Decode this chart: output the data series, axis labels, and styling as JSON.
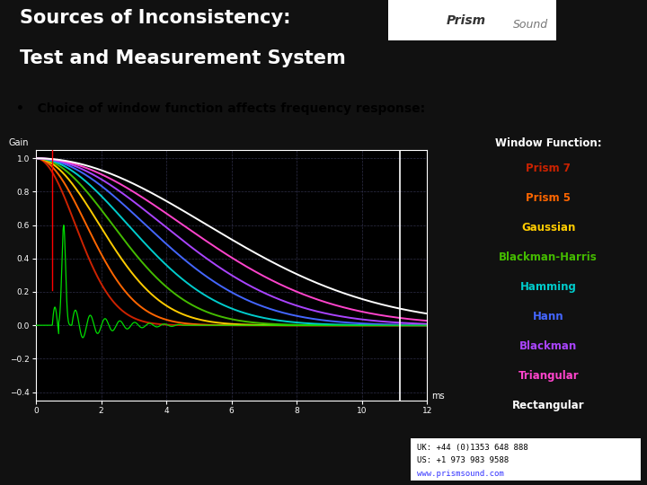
{
  "title_line1": "Sources of Inconsistency:",
  "title_line2": "Test and Measurement System",
  "title_bg": "#111111",
  "bullet_text": "Choice of window function affects frequency response:",
  "legend_title": "Window Function:",
  "window_functions": [
    "Prism 7",
    "Prism 5",
    "Gaussian",
    "Blackman-Harris",
    "Hamming",
    "Hann",
    "Blackman",
    "Triangular",
    "Rectangular"
  ],
  "window_colors": [
    "#cc2200",
    "#ff6600",
    "#ffcc00",
    "#44bb00",
    "#00cccc",
    "#4466ff",
    "#aa44ff",
    "#ff44cc",
    "#ffffff"
  ],
  "half_widths": [
    1.8,
    2.3,
    2.9,
    3.5,
    4.2,
    5.0,
    5.8,
    6.7,
    7.8
  ],
  "footer_url": "www.prismsound.com",
  "footer_url_color": "#3333ff",
  "xticks": [
    0,
    2,
    4,
    6,
    8,
    10,
    12
  ],
  "yticks": [
    -0.4,
    -0.2,
    0.0,
    0.2,
    0.4,
    0.6,
    0.8,
    1.0
  ],
  "xmax": 12,
  "ymin": -0.45,
  "ymax": 1.05,
  "title_fontsize": 15,
  "bullet_fontsize": 10,
  "legend_fontsize": 8.5
}
